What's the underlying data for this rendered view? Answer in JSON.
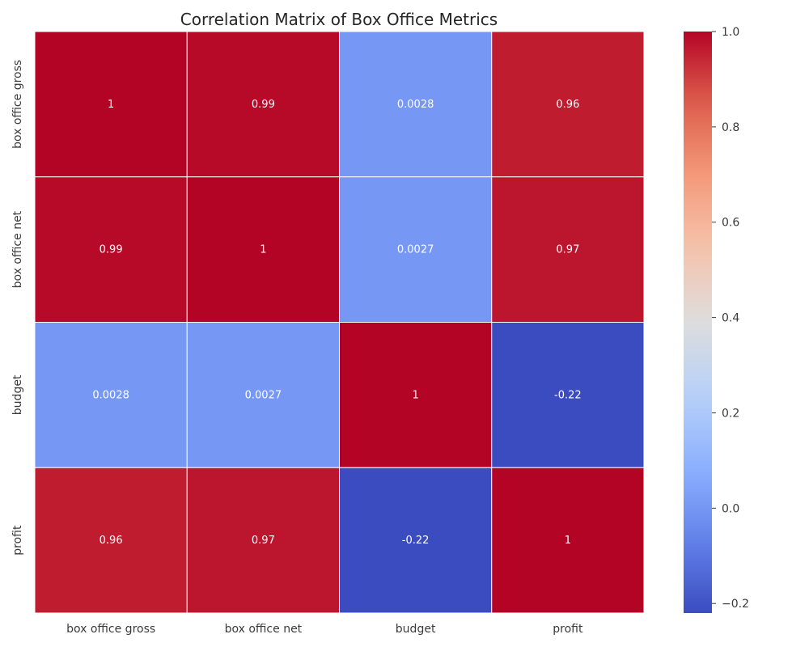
{
  "chart_data": {
    "type": "heatmap",
    "title": "Correlation Matrix of Box Office Metrics",
    "xlabel": "",
    "ylabel": "",
    "x_categories": [
      "box office gross",
      "box office net",
      "budget",
      "profit"
    ],
    "y_categories": [
      "box office gross",
      "box office net",
      "budget",
      "profit"
    ],
    "values": [
      [
        1,
        0.99,
        0.0028,
        0.96
      ],
      [
        0.99,
        1,
        0.0027,
        0.97
      ],
      [
        0.0028,
        0.0027,
        1,
        -0.22
      ],
      [
        0.96,
        0.97,
        -0.22,
        1
      ]
    ],
    "cell_labels": [
      [
        "1",
        "0.99",
        "0.0028",
        "0.96"
      ],
      [
        "0.99",
        "1",
        "0.0027",
        "0.97"
      ],
      [
        "0.0028",
        "0.0027",
        "1",
        "-0.22"
      ],
      [
        "0.96",
        "0.97",
        "-0.22",
        "1"
      ]
    ],
    "colormap": "coolwarm",
    "vmin": -0.22,
    "vmax": 1.0,
    "colorbar": {
      "ticks": [
        1.0,
        0.8,
        0.6,
        0.4,
        0.2,
        0.0,
        -0.2
      ],
      "tick_labels": [
        "1.0",
        "0.8",
        "0.6",
        "0.4",
        "0.2",
        "0.0",
        "−0.2"
      ]
    },
    "gridlines_between_cells": true,
    "legend_placement": "right"
  }
}
